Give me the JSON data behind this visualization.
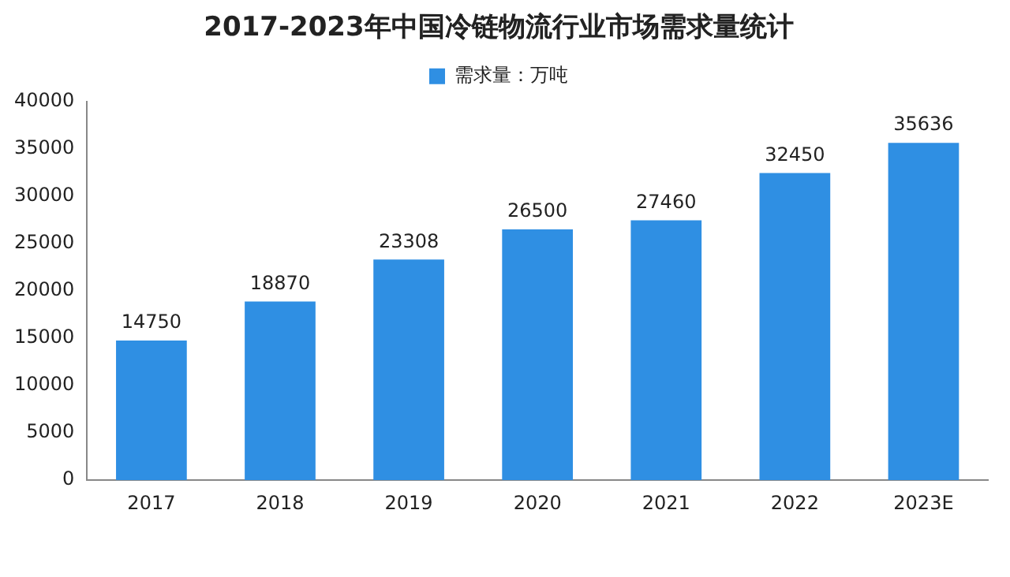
{
  "chart_data": {
    "type": "bar",
    "title": "2017-2023年中国冷链物流行业市场需求量统计",
    "categories": [
      "2017",
      "2018",
      "2019",
      "2020",
      "2021",
      "2022",
      "2023E"
    ],
    "series": [
      {
        "name": "需求量：万吨",
        "color": "#2f8fe3",
        "values": [
          14750,
          18870,
          23308,
          26500,
          27460,
          32450,
          35636
        ]
      }
    ],
    "ylim": [
      0,
      40000
    ],
    "yticks": [
      0,
      5000,
      10000,
      15000,
      20000,
      25000,
      30000,
      35000,
      40000
    ],
    "grid": false,
    "legend": "top",
    "data_labels": true
  }
}
